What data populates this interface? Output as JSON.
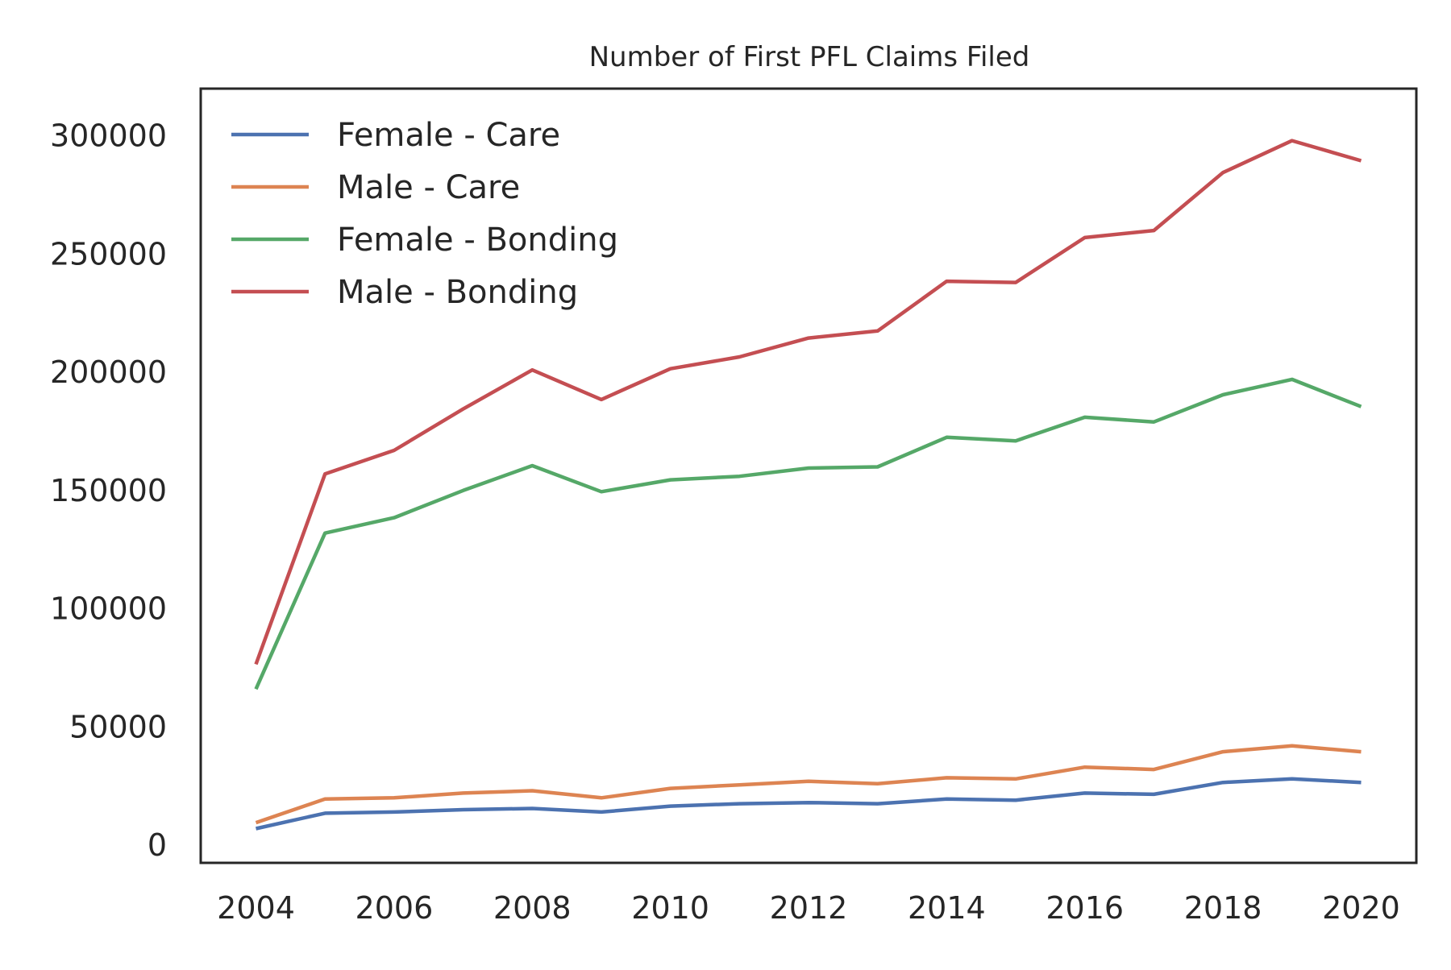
{
  "chart_data": {
    "type": "line",
    "title": "Number of First PFL Claims Filed",
    "xlabel": "",
    "ylabel": "",
    "x": [
      2004,
      2005,
      2006,
      2007,
      2008,
      2009,
      2010,
      2011,
      2012,
      2013,
      2014,
      2015,
      2016,
      2017,
      2018,
      2019,
      2020
    ],
    "xlim": [
      2003.2,
      2020.8
    ],
    "ylim": [
      -7500,
      320000
    ],
    "x_ticks": [
      2004,
      2006,
      2008,
      2010,
      2012,
      2014,
      2016,
      2018,
      2020
    ],
    "y_ticks": [
      0,
      50000,
      100000,
      150000,
      200000,
      250000,
      300000
    ],
    "grid": false,
    "legend_position": "top-left",
    "series": [
      {
        "name": "Female - Care",
        "color": "#4c72b0",
        "values": [
          7000,
          13500,
          14000,
          15000,
          15500,
          14000,
          16500,
          17500,
          18000,
          17500,
          19500,
          19000,
          22000,
          21500,
          26500,
          28000,
          26500
        ]
      },
      {
        "name": "Male - Care",
        "color": "#dd8452",
        "values": [
          9500,
          19500,
          20000,
          22000,
          23000,
          20000,
          24000,
          25500,
          27000,
          26000,
          28500,
          28000,
          33000,
          32000,
          39500,
          42000,
          39500
        ]
      },
      {
        "name": "Female - Bonding",
        "color": "#55a868",
        "values": [
          66000,
          132000,
          138500,
          150000,
          160500,
          149500,
          154500,
          156000,
          159500,
          160000,
          172500,
          171000,
          181000,
          179000,
          190500,
          197000,
          185500
        ]
      },
      {
        "name": "Male - Bonding",
        "color": "#c44e52",
        "values": [
          76500,
          157000,
          167000,
          184500,
          201000,
          188500,
          201500,
          206500,
          214500,
          217500,
          238500,
          238000,
          257000,
          260000,
          284500,
          298000,
          289500
        ]
      }
    ]
  }
}
